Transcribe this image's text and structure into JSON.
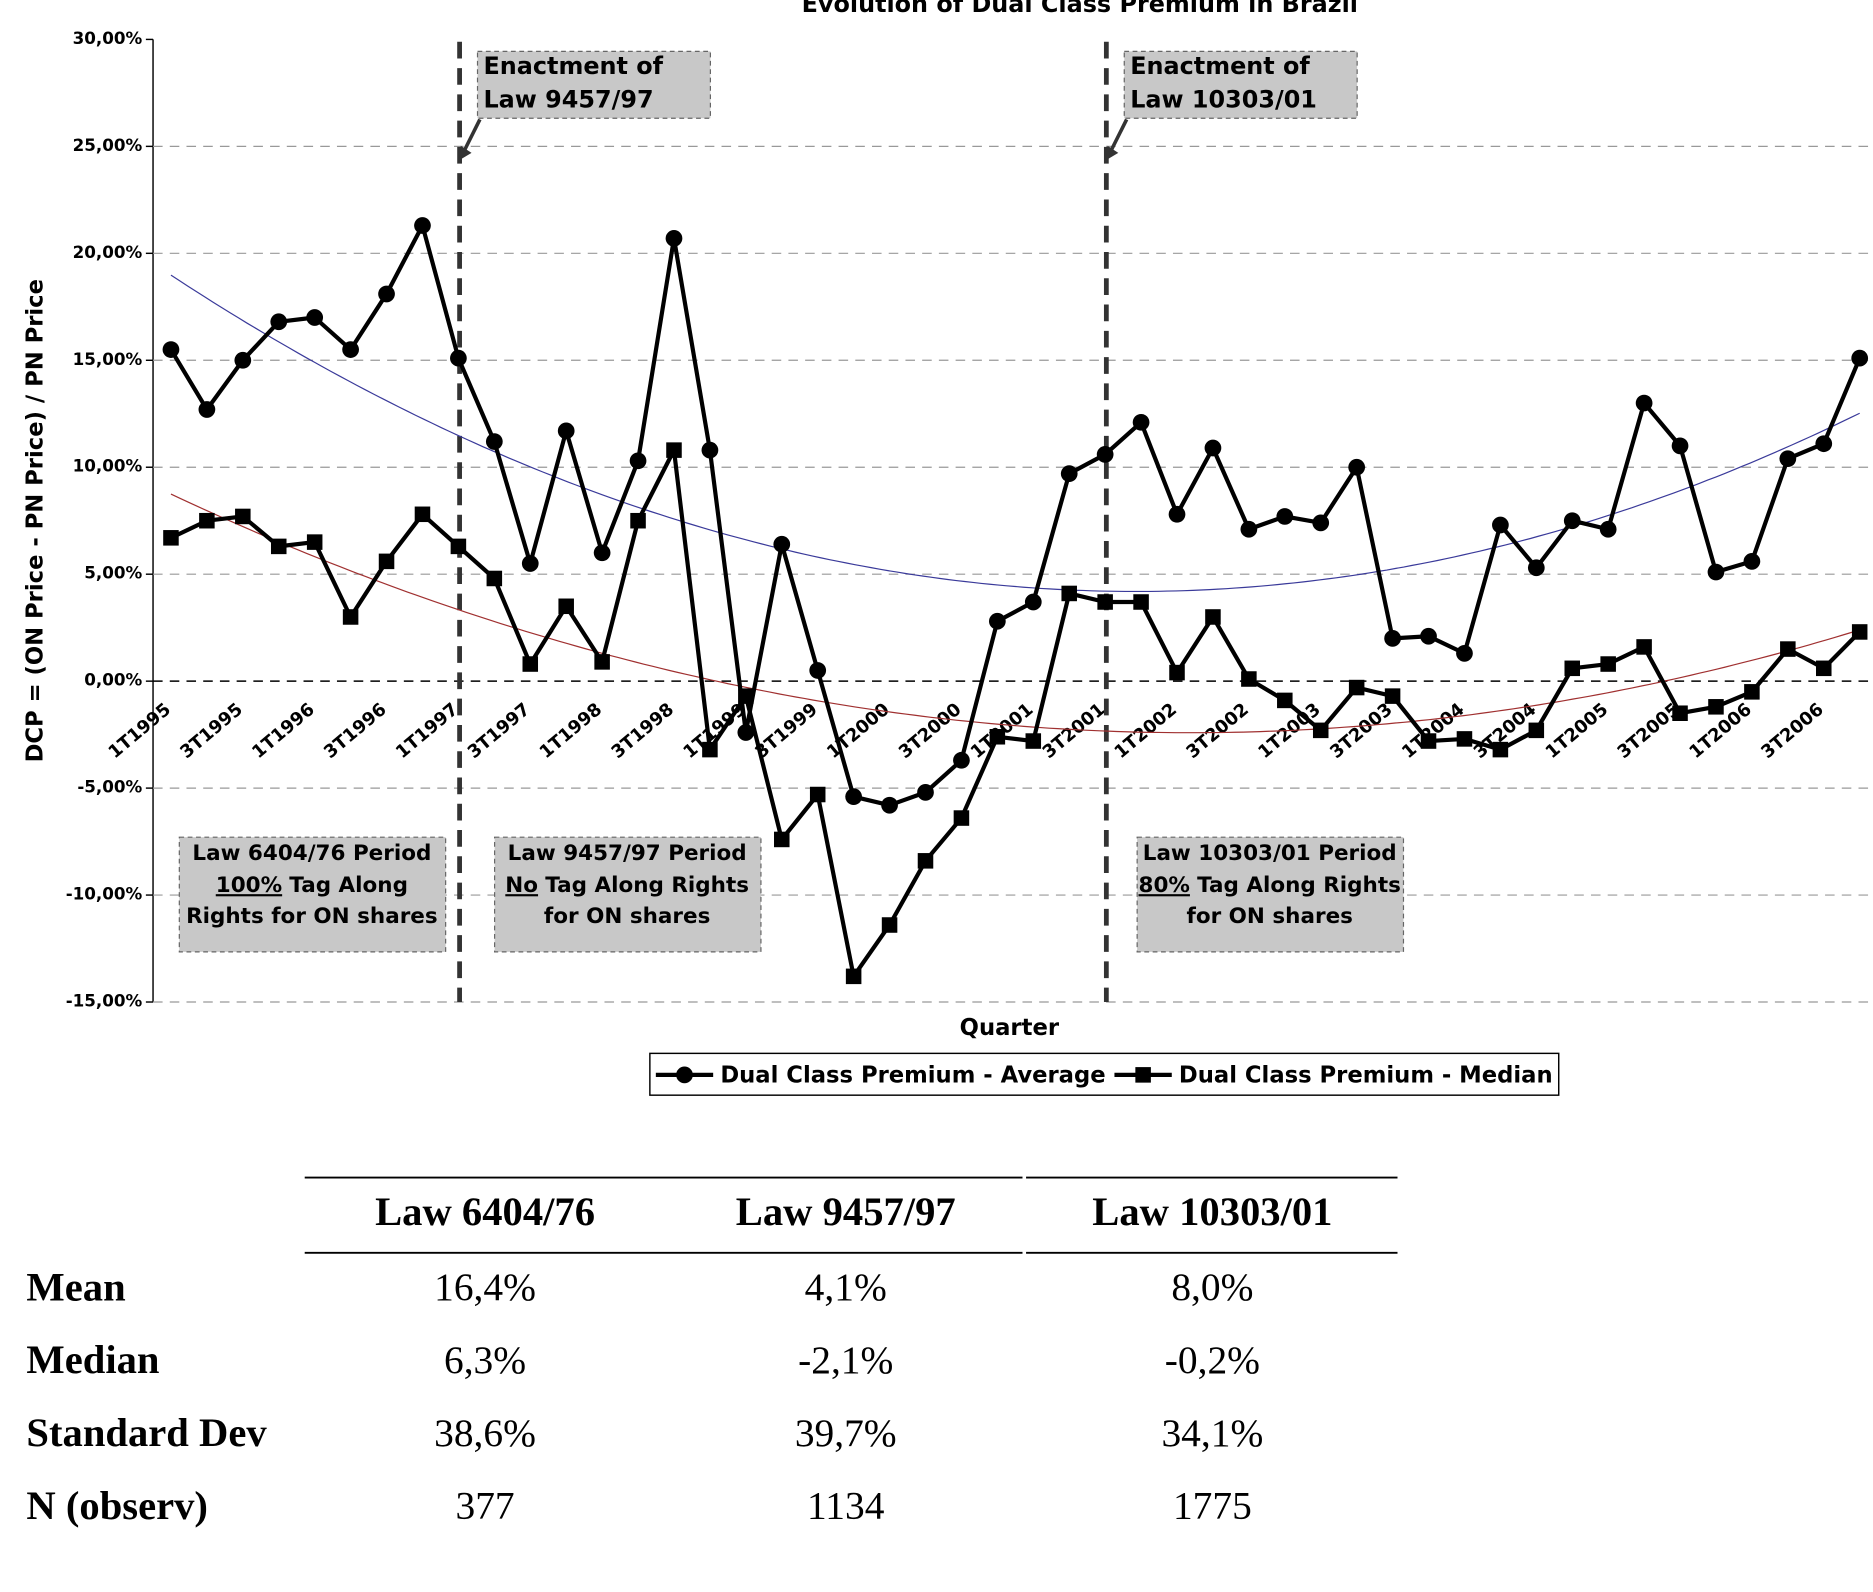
{
  "chart_data": {
    "type": "line",
    "title": "Evolution of Dual Class Premium in Brazil",
    "y_label": "DCP = (ON Price - PN Price) / PN Price",
    "x_label": "Quarter",
    "categories": [
      "1T1995",
      null,
      "3T1995",
      null,
      "1T1996",
      null,
      "3T1996",
      null,
      "1T1997",
      null,
      "3T1997",
      null,
      "1T1998",
      null,
      "3T1998",
      null,
      "1T1999",
      null,
      "3T1999",
      null,
      "1T2000",
      null,
      "3T2000",
      null,
      "1T2001",
      null,
      "3T2001",
      null,
      "1T2002",
      null,
      "3T2002",
      null,
      "1T2003",
      null,
      "3T2003",
      null,
      "1T2004",
      null,
      "3T2004",
      null,
      "1T2005",
      null,
      "3T2005",
      null,
      "1T2006",
      null,
      "3T2006",
      null
    ],
    "series": [
      {
        "name": "Dual Class Premium - Average",
        "color": "#000000",
        "marker": "circle",
        "trendline": {
          "order": 2,
          "color": "#3a3a9a"
        },
        "values": [
          15.5,
          12.7,
          15.0,
          16.8,
          17.0,
          15.5,
          18.1,
          21.3,
          15.1,
          11.2,
          5.5,
          11.7,
          6.0,
          10.3,
          20.7,
          10.8,
          -2.4,
          6.4,
          0.5,
          -5.4,
          -5.8,
          -5.2,
          -3.7,
          2.8,
          3.7,
          9.7,
          10.6,
          12.1,
          7.8,
          10.9,
          7.1,
          7.7,
          7.4,
          10.0,
          2.0,
          2.1,
          1.3,
          7.3,
          5.3,
          7.5,
          7.1,
          13.0,
          11.0,
          5.1,
          5.6,
          10.4,
          11.1,
          15.1
        ]
      },
      {
        "name": "Dual Class Premium - Median",
        "color": "#000000",
        "marker": "square",
        "trendline": {
          "order": 2,
          "color": "#a03030"
        },
        "values": [
          6.7,
          7.5,
          7.7,
          6.3,
          6.5,
          3.0,
          5.6,
          7.8,
          6.3,
          4.8,
          0.8,
          3.5,
          0.9,
          7.5,
          10.8,
          -3.2,
          -0.7,
          -7.4,
          -5.3,
          -13.8,
          -11.4,
          -8.4,
          -6.4,
          -2.6,
          -2.8,
          4.1,
          3.7,
          3.7,
          0.4,
          3.0,
          0.1,
          -0.9,
          -2.3,
          -0.3,
          -0.7,
          -2.8,
          -2.7,
          -3.2,
          -2.3,
          0.6,
          0.8,
          1.6,
          -1.5,
          -1.2,
          -0.5,
          1.5,
          0.6,
          2.3
        ]
      }
    ],
    "ylim": [
      -15,
      30
    ],
    "yticks": [
      {
        "value": -15,
        "label": "-15,00%"
      },
      {
        "value": -10,
        "label": "-10,00%"
      },
      {
        "value": -5,
        "label": "-5,00%"
      },
      {
        "value": 0,
        "label": "0,00%"
      },
      {
        "value": 5,
        "label": "5,00%"
      },
      {
        "value": 10,
        "label": "10,00%"
      },
      {
        "value": 15,
        "label": "15,00%"
      },
      {
        "value": 20,
        "label": "20,00%"
      },
      {
        "value": 25,
        "label": "25,00%"
      },
      {
        "value": 30,
        "label": "30,00%"
      }
    ],
    "grid": true,
    "legend": "bottom",
    "events": [
      {
        "at": "1T1997",
        "lines": [
          "Enactment of",
          "Law 9457/97"
        ]
      },
      {
        "at": "3T2001",
        "lines": [
          "Enactment of",
          "Law 10303/01"
        ]
      }
    ],
    "periods": [
      {
        "title": "Law 6404/76 Period",
        "underlined": "100%",
        "text": "Tag Along",
        "last": "Rights for ON shares"
      },
      {
        "title": "Law 9457/97 Period",
        "underlined": "No",
        "text": "Tag Along Rights",
        "last": "for ON shares"
      },
      {
        "title": "Law 10303/01 Period",
        "underlined": "80%",
        "text": "Tag Along Rights",
        "last": "for ON shares"
      }
    ]
  },
  "table": {
    "columns": [
      "Law 6404/76",
      "Law 9457/97",
      "Law 10303/01"
    ],
    "rows": [
      {
        "label": "Mean",
        "cells": [
          "16,4%",
          "4,1%",
          "8,0%"
        ]
      },
      {
        "label": "Median",
        "cells": [
          "6,3%",
          "-2,1%",
          "-0,2%"
        ]
      },
      {
        "label": "Standard Dev",
        "cells": [
          "38,6%",
          "39,7%",
          "34,1%"
        ]
      },
      {
        "label": "N (observ)",
        "cells": [
          "377",
          "1134",
          "1775"
        ]
      }
    ]
  }
}
